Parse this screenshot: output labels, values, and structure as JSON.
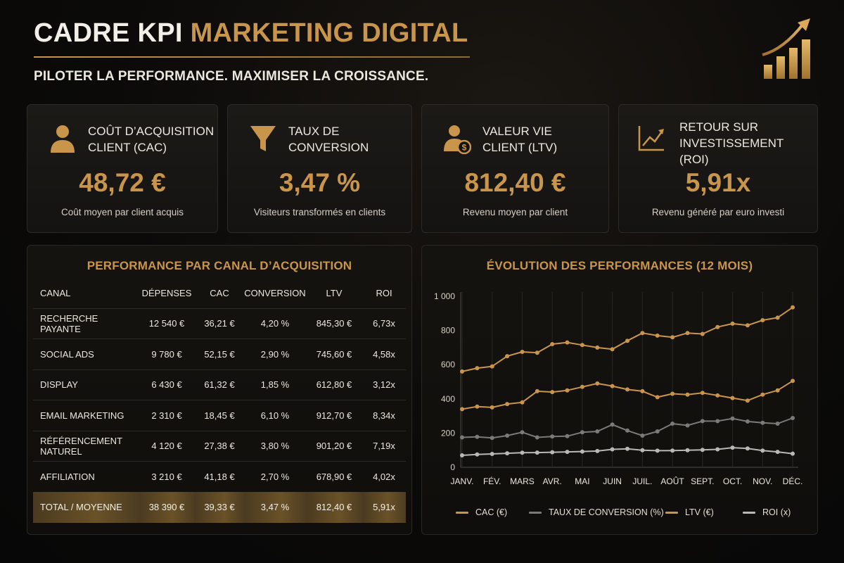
{
  "header": {
    "title_part1": "CADRE KPI",
    "title_part2": "MARKETING DIGITAL",
    "subtitle": "PILOTER LA PERFORMANCE. MAXIMISER LA CROISSANCE.",
    "logo_icon": "bar-chart-growth-icon"
  },
  "colors": {
    "gold": "#c9954a",
    "gray": "#7a7a78",
    "light": "#b8b8b6",
    "background": "#0b0a09"
  },
  "kpis": [
    {
      "icon": "user-icon",
      "label": "COÛT D’ACQUISITION\nCLIENT (CAC)",
      "value": "48,72 €",
      "description": "Coût moyen par client acquis"
    },
    {
      "icon": "funnel-icon",
      "label": "TAUX DE\nCONVERSION",
      "value": "3,47 %",
      "description": "Visiteurs transformés en clients"
    },
    {
      "icon": "user-money-icon",
      "label": "VALEUR VIE\nCLIENT (LTV)",
      "value": "812,40 €",
      "description": "Revenu moyen par client"
    },
    {
      "icon": "trend-up-icon",
      "label": "RETOUR SUR\nINVESTISSEMENT (ROI)",
      "value": "5,91x",
      "description": "Revenu généré par euro investi"
    }
  ],
  "channel_table": {
    "title": "PERFORMANCE PAR CANAL D’ACQUISITION",
    "headers": [
      "CANAL",
      "DÉPENSES",
      "CAC",
      "CONVERSION",
      "LTV",
      "ROI"
    ],
    "rows": [
      [
        "RECHERCHE PAYANTE",
        "12 540 €",
        "36,21 €",
        "4,20 %",
        "845,30 €",
        "6,73x"
      ],
      [
        "SOCIAL ADS",
        "9 780 €",
        "52,15 €",
        "2,90 %",
        "745,60 €",
        "4,58x"
      ],
      [
        "DISPLAY",
        "6 430 €",
        "61,32 €",
        "1,85 %",
        "612,80 €",
        "3,12x"
      ],
      [
        "EMAIL MARKETING",
        "2 310 €",
        "18,45 €",
        "6,10 %",
        "912,70 €",
        "8,34x"
      ],
      [
        "RÉFÉRENCEMENT NATUREL",
        "4 120 €",
        "27,38 €",
        "3,80 %",
        "901,20 €",
        "7,19x"
      ],
      [
        "AFFILIATION",
        "3 210 €",
        "41,18 €",
        "2,70 %",
        "678,90 €",
        "4,02x"
      ]
    ],
    "total": [
      "TOTAL / MOYENNE",
      "38 390 €",
      "39,33 €",
      "3,47 %",
      "812,40 €",
      "5,91x"
    ]
  },
  "chart_data": {
    "type": "line",
    "title": "ÉVOLUTION DES PERFORMANCES (12 MOIS)",
    "xlabel": "",
    "ylabel": "",
    "ylim": [
      0,
      1000
    ],
    "yticks": [
      0,
      200,
      400,
      600,
      800,
      1000
    ],
    "ytick_labels": [
      "0",
      "200",
      "400",
      "600",
      "800",
      "1 000"
    ],
    "categories": [
      "JANV.",
      "FÉV.",
      "MARS",
      "AVR.",
      "MAI",
      "JUIN",
      "JUIL.",
      "AOÛT",
      "SEPT.",
      "OCT.",
      "NOV.",
      "DÉC."
    ],
    "grid": "vertical-only",
    "legend_position": "bottom",
    "series": [
      {
        "name": "CAC (€)",
        "color": "#c9954a",
        "x": [
          0,
          0.5,
          1,
          1.5,
          2,
          2.5,
          3,
          3.5,
          4,
          4.5,
          5,
          5.5,
          6,
          6.5,
          7,
          7.5,
          8,
          8.5,
          9,
          9.5,
          10,
          10.5,
          11
        ],
        "values": [
          340,
          355,
          350,
          370,
          380,
          445,
          440,
          450,
          470,
          490,
          475,
          455,
          445,
          410,
          430,
          425,
          435,
          420,
          405,
          390,
          425,
          450,
          505
        ]
      },
      {
        "name": "TAUX DE CONVERSION (%)",
        "color": "#7a7a78",
        "x": [
          0,
          0.5,
          1,
          1.5,
          2,
          2.5,
          3,
          3.5,
          4,
          4.5,
          5,
          5.5,
          6,
          6.5,
          7,
          7.5,
          8,
          8.5,
          9,
          9.5,
          10,
          10.5,
          11
        ],
        "values": [
          175,
          178,
          172,
          185,
          205,
          175,
          180,
          182,
          205,
          210,
          250,
          215,
          185,
          210,
          255,
          245,
          270,
          270,
          285,
          268,
          260,
          255,
          288
        ]
      },
      {
        "name": "LTV (€)",
        "color": "#c9954a",
        "x": [
          0,
          0.5,
          1,
          1.5,
          2,
          2.5,
          3,
          3.5,
          4,
          4.5,
          5,
          5.5,
          6,
          6.5,
          7,
          7.5,
          8,
          8.5,
          9,
          9.5,
          10,
          10.5,
          11
        ],
        "values": [
          560,
          580,
          590,
          650,
          675,
          670,
          720,
          730,
          715,
          700,
          690,
          740,
          785,
          770,
          760,
          785,
          780,
          820,
          840,
          830,
          860,
          875,
          935
        ]
      },
      {
        "name": "ROI (x)",
        "color": "#b8b8b6",
        "x": [
          0,
          0.5,
          1,
          1.5,
          2,
          2.5,
          3,
          3.5,
          4,
          4.5,
          5,
          5.5,
          6,
          6.5,
          7,
          7.5,
          8,
          8.5,
          9,
          9.5,
          10,
          10.5,
          11
        ],
        "values": [
          70,
          75,
          78,
          82,
          85,
          86,
          88,
          90,
          92,
          95,
          105,
          108,
          100,
          97,
          98,
          100,
          102,
          105,
          115,
          110,
          98,
          90,
          80
        ]
      }
    ]
  }
}
